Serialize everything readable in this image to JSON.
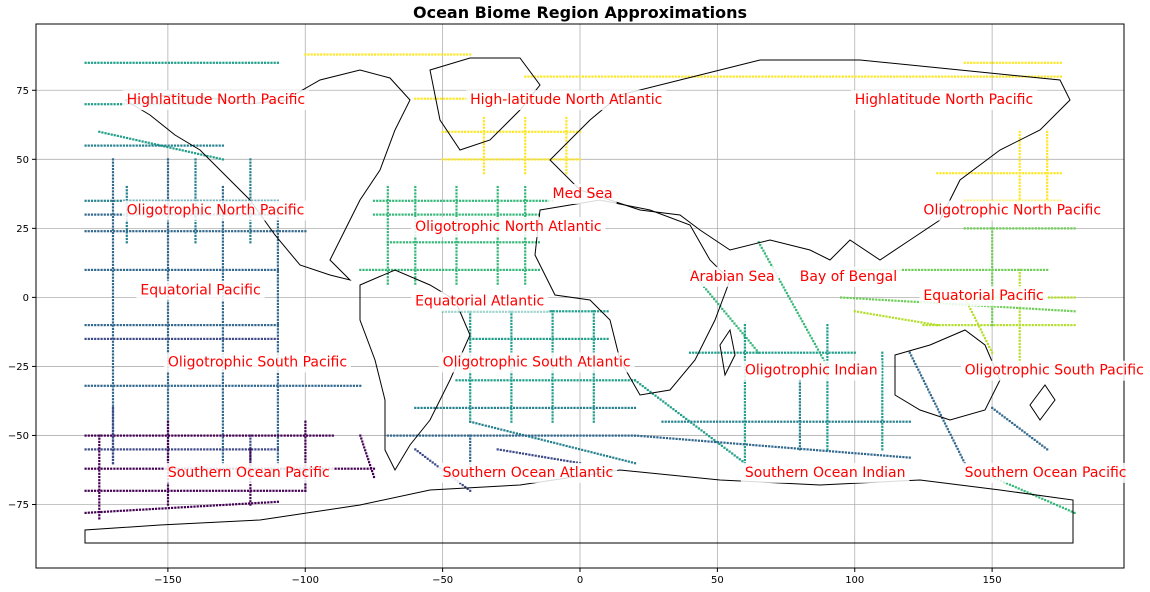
{
  "title": "Ocean Biome Region Approximations",
  "chart_data": {
    "type": "scatter",
    "title": "Ocean Biome Region Approximations",
    "xlim": [
      -198,
      198
    ],
    "ylim": [
      -98,
      99
    ],
    "x_ticks": [
      -150,
      -100,
      -50,
      0,
      50,
      100,
      150
    ],
    "y_ticks": [
      -75,
      -50,
      -25,
      0,
      25,
      50,
      75
    ],
    "x_tick_labels": [
      "−150",
      "−100",
      "−50",
      "0",
      "50",
      "100",
      "150"
    ],
    "y_tick_labels": [
      "−75",
      "−50",
      "−25",
      "0",
      "25",
      "50",
      "75"
    ],
    "grid": true,
    "colormap": "viridis",
    "region_labels": [
      {
        "text": "Highlatitude North Pacific",
        "x": -165,
        "y": 70
      },
      {
        "text": "High-latitude North Atlantic",
        "x": -40,
        "y": 70
      },
      {
        "text": "Highlatitude North Pacific",
        "x": 100,
        "y": 70
      },
      {
        "text": "Med Sea",
        "x": -10,
        "y": 36
      },
      {
        "text": "Oligotrophic North Pacific",
        "x": -165,
        "y": 30
      },
      {
        "text": "Oligotrophic North Atlantic",
        "x": -60,
        "y": 24
      },
      {
        "text": "Oligotrophic North Pacific",
        "x": 125,
        "y": 30
      },
      {
        "text": "Arabian Sea",
        "x": 40,
        "y": 6
      },
      {
        "text": "Bay of Bengal",
        "x": 80,
        "y": 6
      },
      {
        "text": "Equatorial Pacific",
        "x": -160,
        "y": 1
      },
      {
        "text": "Equatorial Pacific",
        "x": 125,
        "y": -1
      },
      {
        "text": "Equatorial Atlantic",
        "x": -60,
        "y": -3
      },
      {
        "text": "Oligotrophic South Pacific",
        "x": -150,
        "y": -25
      },
      {
        "text": "Oligotrophic South Atlantic",
        "x": -50,
        "y": -25
      },
      {
        "text": "Oligotrophic Indian",
        "x": 60,
        "y": -28
      },
      {
        "text": "Oligotrophic South Pacific",
        "x": 140,
        "y": -28
      },
      {
        "text": "Southern Ocean Pacific",
        "x": -150,
        "y": -65
      },
      {
        "text": "Southern Ocean Atlantic",
        "x": -50,
        "y": -65
      },
      {
        "text": "Southern Ocean Indian",
        "x": 60,
        "y": -65
      },
      {
        "text": "Southern Ocean Pacific",
        "x": 140,
        "y": -65
      }
    ],
    "series": [
      {
        "color": "#fde725",
        "segments": [
          [
            [
              -100,
              88
            ],
            [
              -40,
              88
            ]
          ],
          [
            [
              -20,
              80
            ],
            [
              175,
              80
            ]
          ],
          [
            [
              -60,
              72
            ],
            [
              -10,
              72
            ]
          ],
          [
            [
              -50,
              60
            ],
            [
              0,
              60
            ]
          ],
          [
            [
              -50,
              50
            ],
            [
              0,
              50
            ]
          ],
          [
            [
              -35,
              45
            ],
            [
              -35,
              65
            ]
          ],
          [
            [
              -20,
              45
            ],
            [
              -20,
              65
            ]
          ],
          [
            [
              -5,
              45
            ],
            [
              -5,
              65
            ]
          ],
          [
            [
              140,
              85
            ],
            [
              175,
              85
            ]
          ],
          [
            [
              130,
              45
            ],
            [
              175,
              45
            ]
          ],
          [
            [
              140,
              35
            ],
            [
              175,
              35
            ]
          ],
          [
            [
              160,
              30
            ],
            [
              160,
              60
            ]
          ],
          [
            [
              170,
              30
            ],
            [
              170,
              60
            ]
          ]
        ]
      },
      {
        "color": "#b5de2b",
        "segments": [
          [
            [
              125,
              0
            ],
            [
              180,
              0
            ]
          ],
          [
            [
              125,
              -10
            ],
            [
              180,
              -10
            ]
          ],
          [
            [
              160,
              10
            ],
            [
              160,
              -25
            ]
          ],
          [
            [
              140,
              0
            ],
            [
              150,
              -20
            ]
          ],
          [
            [
              100,
              -5
            ],
            [
              130,
              -10
            ]
          ]
        ]
      },
      {
        "color": "#6ece58",
        "segments": [
          [
            [
              100,
              10
            ],
            [
              170,
              10
            ]
          ],
          [
            [
              95,
              0
            ],
            [
              180,
              -5
            ]
          ],
          [
            [
              140,
              25
            ],
            [
              180,
              25
            ]
          ],
          [
            [
              150,
              25
            ],
            [
              150,
              -10
            ]
          ]
        ]
      },
      {
        "color": "#35b779",
        "segments": [
          [
            [
              -75,
              35
            ],
            [
              -10,
              35
            ]
          ],
          [
            [
              -75,
              30
            ],
            [
              -15,
              30
            ]
          ],
          [
            [
              -70,
              20
            ],
            [
              -15,
              20
            ]
          ],
          [
            [
              -80,
              10
            ],
            [
              -15,
              10
            ]
          ],
          [
            [
              -70,
              40
            ],
            [
              -70,
              5
            ]
          ],
          [
            [
              -60,
              40
            ],
            [
              -60,
              5
            ]
          ],
          [
            [
              -45,
              40
            ],
            [
              -45,
              5
            ]
          ],
          [
            [
              -30,
              40
            ],
            [
              -30,
              5
            ]
          ],
          [
            [
              -20,
              40
            ],
            [
              -20,
              5
            ]
          ],
          [
            [
              40,
              10
            ],
            [
              65,
              -20
            ]
          ],
          [
            [
              65,
              20
            ],
            [
              90,
              -25
            ]
          ],
          [
            [
              150,
              -65
            ],
            [
              180,
              -78
            ]
          ]
        ]
      },
      {
        "color": "#1f9e89",
        "segments": [
          [
            [
              -180,
              85
            ],
            [
              -110,
              85
            ]
          ],
          [
            [
              -180,
              70
            ],
            [
              -140,
              70
            ]
          ],
          [
            [
              -175,
              60
            ],
            [
              -130,
              50
            ]
          ],
          [
            [
              -50,
              -5
            ],
            [
              10,
              -5
            ]
          ],
          [
            [
              -40,
              -15
            ],
            [
              10,
              -15
            ]
          ],
          [
            [
              -45,
              -30
            ],
            [
              20,
              -30
            ]
          ],
          [
            [
              -40,
              -5
            ],
            [
              -40,
              -45
            ]
          ],
          [
            [
              -25,
              -5
            ],
            [
              -25,
              -45
            ]
          ],
          [
            [
              -10,
              -5
            ],
            [
              -10,
              -45
            ]
          ],
          [
            [
              5,
              -5
            ],
            [
              5,
              -45
            ]
          ],
          [
            [
              20,
              -30
            ],
            [
              60,
              -60
            ]
          ],
          [
            [
              40,
              -20
            ],
            [
              100,
              -20
            ]
          ],
          [
            [
              60,
              -10
            ],
            [
              60,
              -60
            ]
          ],
          [
            [
              90,
              -10
            ],
            [
              90,
              -55
            ]
          ],
          [
            [
              110,
              -20
            ],
            [
              110,
              -55
            ]
          ]
        ]
      },
      {
        "color": "#26828e",
        "segments": [
          [
            [
              -180,
              55
            ],
            [
              -130,
              55
            ]
          ],
          [
            [
              -180,
              35
            ],
            [
              -110,
              35
            ]
          ],
          [
            [
              -165,
              40
            ],
            [
              -165,
              20
            ]
          ],
          [
            [
              -140,
              50
            ],
            [
              -140,
              20
            ]
          ],
          [
            [
              -120,
              50
            ],
            [
              -120,
              20
            ]
          ],
          [
            [
              -60,
              -40
            ],
            [
              20,
              -40
            ]
          ],
          [
            [
              -40,
              -45
            ],
            [
              20,
              -60
            ]
          ],
          [
            [
              30,
              -45
            ],
            [
              120,
              -45
            ]
          ],
          [
            [
              80,
              -30
            ],
            [
              80,
              -55
            ]
          ]
        ]
      },
      {
        "color": "#31688e",
        "segments": [
          [
            [
              -180,
              30
            ],
            [
              -110,
              30
            ]
          ],
          [
            [
              -180,
              24
            ],
            [
              -100,
              24
            ]
          ],
          [
            [
              -170,
              50
            ],
            [
              -170,
              -60
            ]
          ],
          [
            [
              -150,
              50
            ],
            [
              -150,
              -60
            ]
          ],
          [
            [
              -130,
              40
            ],
            [
              -130,
              -60
            ]
          ],
          [
            [
              -110,
              30
            ],
            [
              -110,
              -60
            ]
          ],
          [
            [
              -180,
              10
            ],
            [
              -110,
              10
            ]
          ],
          [
            [
              -180,
              -10
            ],
            [
              -110,
              -10
            ]
          ],
          [
            [
              -180,
              -32
            ],
            [
              -80,
              -32
            ]
          ],
          [
            [
              -70,
              -50
            ],
            [
              20,
              -50
            ]
          ],
          [
            [
              -40,
              -50
            ],
            [
              -40,
              -65
            ]
          ],
          [
            [
              20,
              -50
            ],
            [
              120,
              -58
            ]
          ],
          [
            [
              120,
              -20
            ],
            [
              140,
              -60
            ]
          ],
          [
            [
              150,
              -40
            ],
            [
              170,
              -55
            ]
          ]
        ]
      },
      {
        "color": "#3e4989",
        "segments": [
          [
            [
              -180,
              -15
            ],
            [
              -110,
              -15
            ]
          ],
          [
            [
              -180,
              -55
            ],
            [
              -110,
              -55
            ]
          ],
          [
            [
              -170,
              -40
            ],
            [
              -170,
              -60
            ]
          ],
          [
            [
              -120,
              -50
            ],
            [
              -120,
              -60
            ]
          ],
          [
            [
              -60,
              -55
            ],
            [
              -40,
              -70
            ]
          ],
          [
            [
              -30,
              -55
            ],
            [
              0,
              -60
            ]
          ]
        ]
      },
      {
        "color": "#440154",
        "segments": [
          [
            [
              -180,
              -50
            ],
            [
              -90,
              -50
            ]
          ],
          [
            [
              -180,
              -62
            ],
            [
              -75,
              -62
            ]
          ],
          [
            [
              -180,
              -70
            ],
            [
              -100,
              -70
            ]
          ],
          [
            [
              -180,
              -78
            ],
            [
              -110,
              -74
            ]
          ],
          [
            [
              -175,
              -50
            ],
            [
              -175,
              -80
            ]
          ],
          [
            [
              -150,
              -45
            ],
            [
              -150,
              -75
            ]
          ],
          [
            [
              -120,
              -55
            ],
            [
              -120,
              -75
            ]
          ],
          [
            [
              -100,
              -45
            ],
            [
              -100,
              -70
            ]
          ],
          [
            [
              -80,
              -50
            ],
            [
              -75,
              -65
            ]
          ]
        ]
      }
    ]
  }
}
